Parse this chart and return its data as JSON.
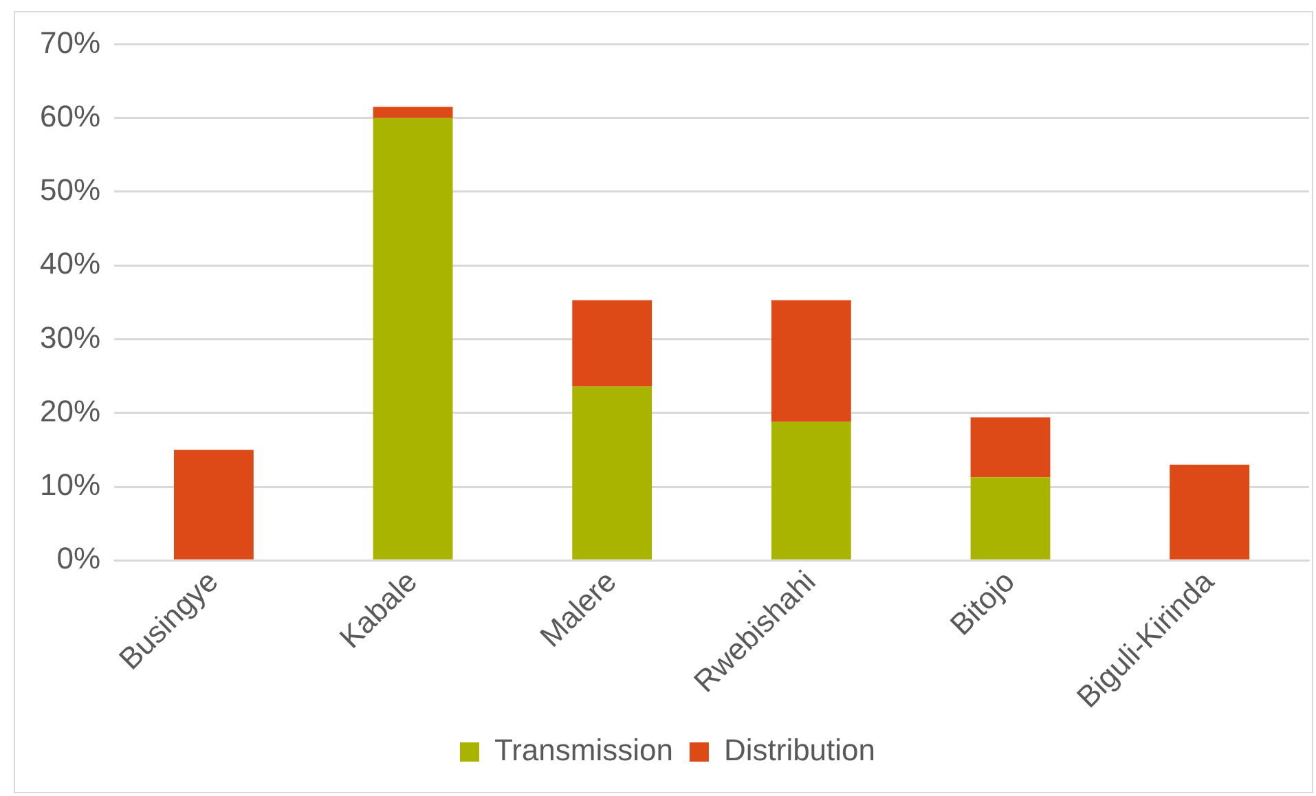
{
  "chart_data": {
    "type": "bar",
    "stacked": true,
    "categories": [
      "Busingye",
      "Kabale",
      "Malere",
      "Rwebishahi",
      "Bitojo",
      "Biguli-Kirinda"
    ],
    "series": [
      {
        "name": "Transmission",
        "color": "#a9b400",
        "values": [
          0,
          60,
          23.6,
          18.8,
          11.3,
          0
        ]
      },
      {
        "name": "Distribution",
        "color": "#de4a17",
        "values": [
          15,
          1.5,
          11.7,
          16.5,
          8.1,
          13
        ]
      }
    ],
    "ylim": [
      0,
      70
    ],
    "yticks": [
      {
        "value": 0,
        "label": "0%"
      },
      {
        "value": 10,
        "label": "10%"
      },
      {
        "value": 20,
        "label": "20%"
      },
      {
        "value": 30,
        "label": "30%"
      },
      {
        "value": 40,
        "label": "40%"
      },
      {
        "value": 50,
        "label": "50%"
      },
      {
        "value": 60,
        "label": "60%"
      },
      {
        "value": 70,
        "label": "70%"
      }
    ],
    "grid": "y",
    "legend": "bottom"
  }
}
